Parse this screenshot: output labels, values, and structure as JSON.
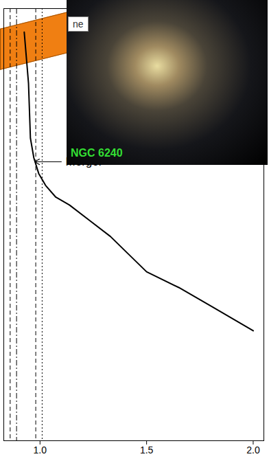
{
  "chart_data": {
    "type": "line",
    "x": [
      0.926,
      0.946,
      0.955,
      0.971,
      0.994,
      1.026,
      1.074,
      1.138,
      1.234,
      1.33,
      1.5,
      1.651,
      1.811,
      2.0
    ],
    "values": [
      104,
      91,
      77,
      72,
      68,
      65,
      62,
      60,
      56,
      52,
      43,
      39,
      34,
      28
    ],
    "color": "#000000",
    "xlim": [
      0.83,
      2.05
    ],
    "ylim": [
      0,
      110
    ],
    "xticks": [
      {
        "value": 1.0,
        "label": "1.0"
      },
      {
        "value": 1.5,
        "label": "1.5"
      },
      {
        "value": 2.0,
        "label": "2.0"
      }
    ],
    "yticks": [],
    "tick_labels": "x",
    "vlines": [
      {
        "x": 0.86,
        "line_style": "dashed"
      },
      {
        "x": 0.89,
        "line_style": "dashdot"
      },
      {
        "x": 0.98,
        "line_style": "dashed"
      },
      {
        "x": 1.01,
        "line_style": "dotted"
      }
    ],
    "annotations": [
      {
        "text": "Merger",
        "x": 1.12,
        "y": 71,
        "arrow_to": [
          0.975,
          71
        ]
      }
    ],
    "inset_label": "NGC 6240",
    "callout_text": "ne"
  }
}
